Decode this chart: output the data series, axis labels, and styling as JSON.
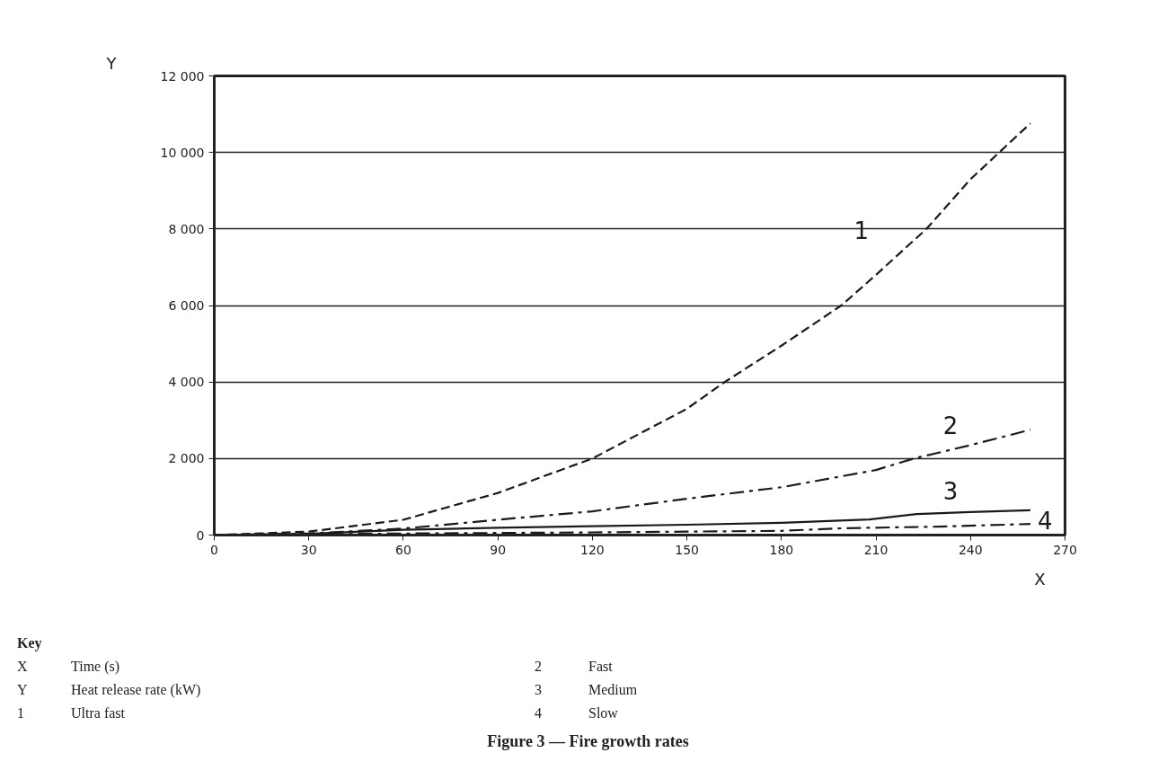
{
  "chart_data": {
    "type": "line",
    "title": "Figure 3 — Fire growth rates",
    "xlabel": "X",
    "ylabel": "Y",
    "xlim": [
      0,
      270
    ],
    "xticks": [
      0,
      30,
      60,
      90,
      120,
      150,
      180,
      210,
      240,
      270
    ],
    "ylim": [
      0,
      12000
    ],
    "yticks": [
      0,
      {
        "value": 2000,
        "label": "2 000"
      },
      {
        "value": 4000,
        "label": "4 000"
      },
      {
        "value": 6000,
        "label": "6 000"
      },
      {
        "value": 8000,
        "label": "8 000"
      },
      {
        "value": 10000,
        "label": "10 000"
      },
      {
        "value": 12000,
        "label": "12 000"
      }
    ],
    "grid": "y",
    "marker": "none",
    "series": [
      {
        "name": "1",
        "color": "#1a1a1a",
        "line_style": "dashed",
        "x": [
          0,
          30,
          60,
          90,
          120,
          150,
          162,
          180,
          199,
          210,
          226,
          240,
          259
        ],
        "values": [
          0,
          90,
          400,
          1100,
          2000,
          3300,
          4000,
          4950,
          6000,
          6800,
          8000,
          9300,
          10760
        ]
      },
      {
        "name": "2",
        "color": "#1a1a1a",
        "line_style": "dashdot",
        "x": [
          0,
          30,
          60,
          90,
          120,
          150,
          180,
          210,
          222,
          240,
          259
        ],
        "values": [
          0,
          40,
          170,
          400,
          620,
          950,
          1250,
          1700,
          2000,
          2350,
          2750
        ]
      },
      {
        "name": "3",
        "color": "#1a1a1a",
        "line_style": "solid",
        "x": [
          0,
          30,
          60,
          90,
          120,
          150,
          180,
          208,
          223,
          240,
          259
        ],
        "values": [
          0,
          30,
          140,
          190,
          230,
          270,
          320,
          410,
          550,
          600,
          650
        ]
      },
      {
        "name": "4",
        "color": "#1a1a1a",
        "line_style": "dashdot",
        "x": [
          0,
          60,
          120,
          180,
          200,
          230,
          259
        ],
        "values": [
          0,
          40,
          70,
          110,
          180,
          220,
          290
        ]
      }
    ],
    "annotations": [
      "Key",
      "X",
      "Time (s)",
      "Y",
      "Heat release rate (kW)",
      "1",
      "Ultra fast",
      "2",
      "Fast",
      "3",
      "Medium",
      "4",
      "Slow"
    ]
  }
}
